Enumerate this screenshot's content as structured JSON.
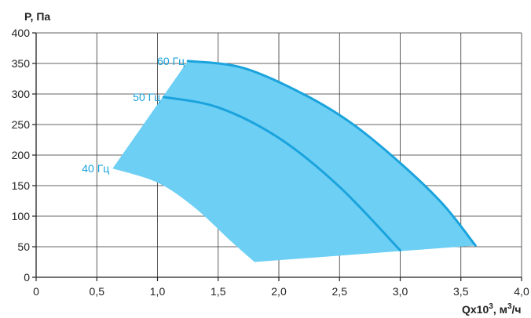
{
  "chart_data": {
    "type": "area",
    "title": "",
    "ylabel": "P, Па",
    "xlabel_parts": [
      "Qx10",
      "3",
      ", м",
      "3",
      "/ч"
    ],
    "xlim": [
      0,
      4.0
    ],
    "ylim": [
      0,
      400
    ],
    "x_ticks": [
      "0",
      "0,5",
      "1,0",
      "1,5",
      "2,0",
      "2,5",
      "3,0",
      "3,5",
      "4,0"
    ],
    "x_tick_values": [
      0,
      0.5,
      1.0,
      1.5,
      2.0,
      2.5,
      3.0,
      3.5,
      4.0
    ],
    "y_ticks": [
      "0",
      "50",
      "100",
      "150",
      "200",
      "250",
      "300",
      "350",
      "400"
    ],
    "y_tick_values": [
      0,
      50,
      100,
      150,
      200,
      250,
      300,
      350,
      400
    ],
    "grid": true,
    "colors": {
      "fill": "#6dcff4",
      "line": "#1aa3dd"
    },
    "series": [
      {
        "name": "40 Гц",
        "x": [
          0.63,
          1.0,
          1.3,
          1.6,
          1.8
        ],
        "y": [
          178,
          155,
          115,
          60,
          25
        ]
      },
      {
        "name": "50 Гц",
        "x": [
          1.05,
          1.5,
          2.0,
          2.5,
          3.0
        ],
        "y": [
          295,
          278,
          228,
          148,
          44
        ]
      },
      {
        "name": "60 Гц",
        "x": [
          1.25,
          1.7,
          2.2,
          2.6,
          3.0,
          3.35,
          3.62
        ],
        "y": [
          354,
          343,
          300,
          252,
          187,
          120,
          52
        ]
      }
    ],
    "region": {
      "left_boundary": {
        "x": [
          0.63,
          1.25
        ],
        "y": [
          178,
          354
        ]
      },
      "bottom_boundary": {
        "x": [
          1.8,
          3.62
        ],
        "y": [
          25,
          52
        ]
      }
    }
  }
}
